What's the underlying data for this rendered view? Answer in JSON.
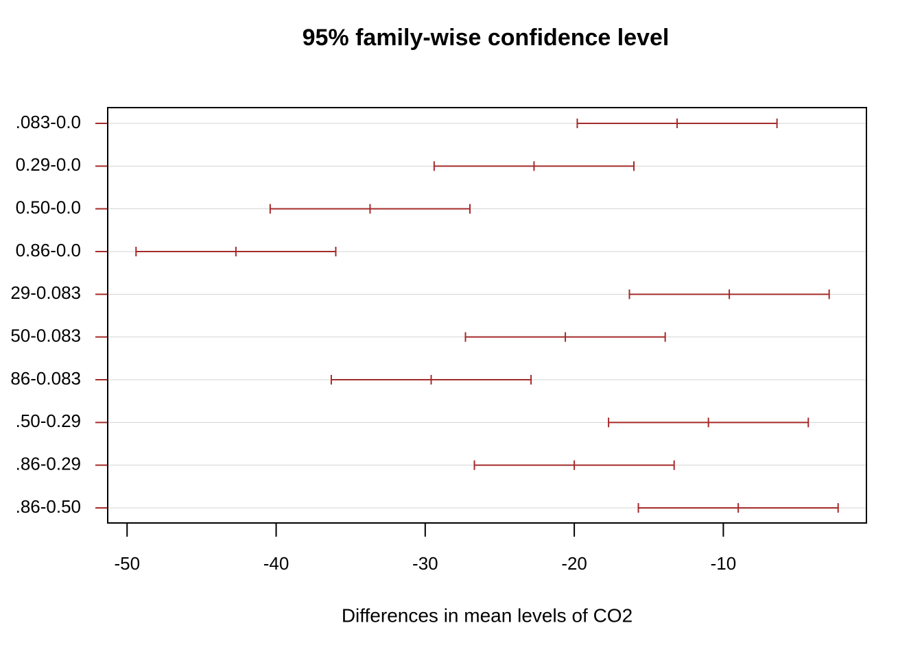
{
  "chart_data": {
    "type": "interval",
    "title": "95% family-wise confidence level",
    "x_label": "Differences in mean levels of CO2",
    "categories": [
      ".083-0.0",
      "0.29-0.0",
      "0.50-0.0",
      "0.86-0.0",
      "29-0.083",
      "50-0.083",
      "86-0.083",
      ".50-0.29",
      ".86-0.29",
      ".86-0.50"
    ],
    "lwr": [
      -19.8,
      -29.4,
      -40.4,
      -49.4,
      -16.3,
      -27.3,
      -36.3,
      -17.7,
      -26.7,
      -15.7
    ],
    "diff": [
      -13.1,
      -22.7,
      -33.7,
      -42.7,
      -9.6,
      -20.6,
      -29.6,
      -11.0,
      -20.0,
      -9.0
    ],
    "upr": [
      -6.4,
      -16.0,
      -27.0,
      -36.0,
      -2.9,
      -13.9,
      -22.9,
      -4.3,
      -13.3,
      -2.3
    ],
    "color": "#a52a2a",
    "xlim": [
      -51.3,
      -0.4
    ],
    "xticks": [
      -50,
      -40,
      -30,
      -20,
      -10
    ],
    "grid": true
  }
}
